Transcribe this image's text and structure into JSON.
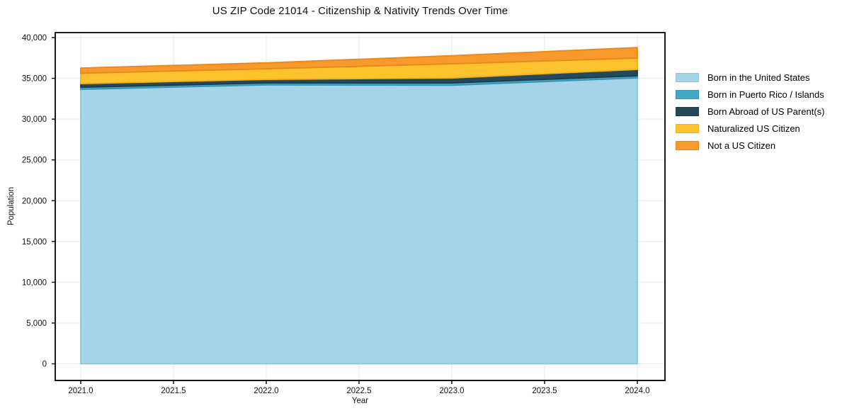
{
  "chart_data": {
    "type": "area",
    "stacked": true,
    "title": "US ZIP Code 21014 - Citizenship & Nativity Trends Over Time",
    "xlabel": "Year",
    "ylabel": "Population",
    "x": [
      2021,
      2022,
      2023,
      2024
    ],
    "series": [
      {
        "name": "Born in the United States",
        "color": "#A5D3E8",
        "edge": "#8CC4DE",
        "values": [
          33650,
          34200,
          34150,
          35050
        ]
      },
      {
        "name": "Born in Puerto Rico / Islands",
        "color": "#41A6C4",
        "edge": "#3795B3",
        "values": [
          250,
          230,
          280,
          260
        ]
      },
      {
        "name": "Born Abroad of US Parent(s)",
        "color": "#25485A",
        "edge": "#1D3B4B",
        "values": [
          450,
          440,
          610,
          780
        ]
      },
      {
        "name": "Naturalized US Citizen",
        "color": "#FDC32E",
        "edge": "#F0B117",
        "values": [
          1270,
          1300,
          1740,
          1390
        ]
      },
      {
        "name": "Not a US Citizen",
        "color": "#F8992B",
        "edge": "#EC851B",
        "values": [
          650,
          730,
          1000,
          1300
        ]
      }
    ],
    "totals": [
      36270,
      36900,
      37780,
      38780
    ],
    "xticks": [
      "2021.0",
      "2021.5",
      "2022.0",
      "2022.5",
      "2023.0",
      "2023.5",
      "2024.0"
    ],
    "xtick_values": [
      2021,
      2021.5,
      2022,
      2022.5,
      2023,
      2023.5,
      2024
    ],
    "yticks": [
      "0",
      "5,000",
      "10,000",
      "15,000",
      "20,000",
      "25,000",
      "30,000",
      "35,000",
      "40,000"
    ],
    "ytick_values": [
      0,
      5000,
      10000,
      15000,
      20000,
      25000,
      30000,
      35000,
      40000
    ],
    "xlim": [
      2020.8626,
      2024.1489
    ],
    "ylim": [
      -2040,
      40610
    ],
    "grid": true,
    "legend_position": "right-outside",
    "grid_color": "#e8e8e8",
    "spine_color": "#000000",
    "tick_text_color": "#111111",
    "background_color": "#ffffff"
  }
}
